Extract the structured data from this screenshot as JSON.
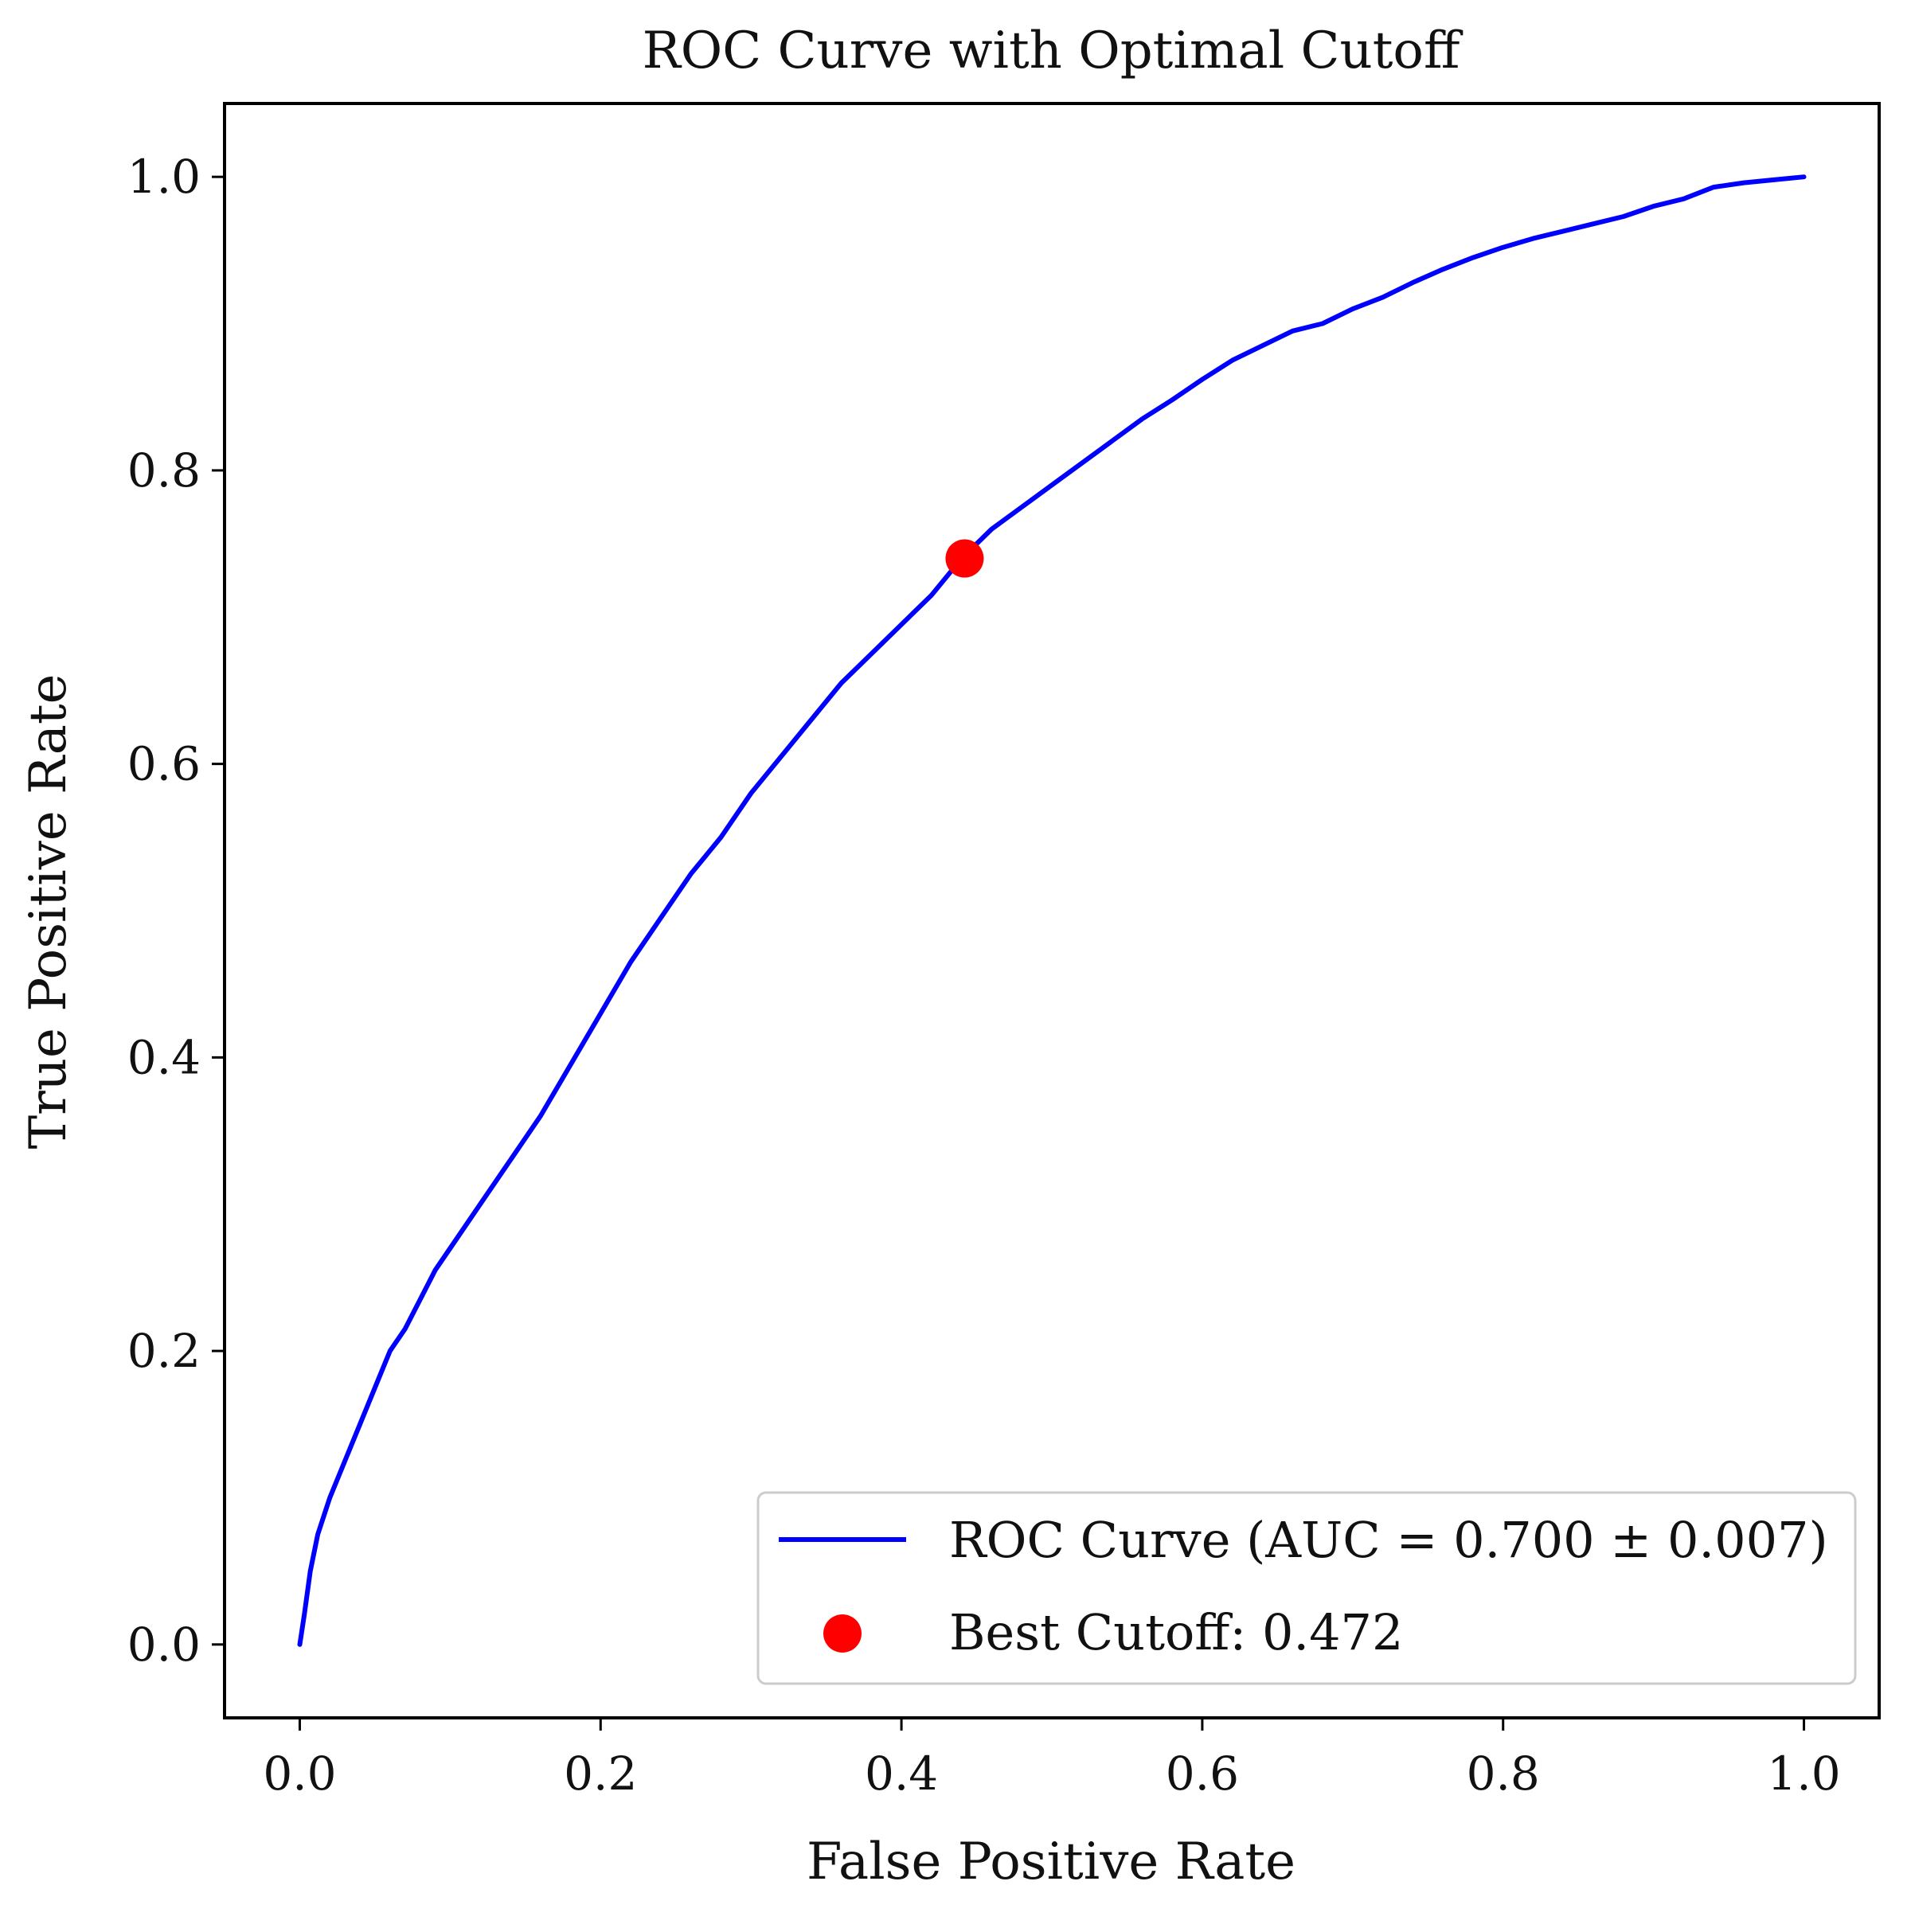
{
  "chart_data": {
    "type": "line",
    "title": "ROC Curve with Optimal Cutoff",
    "xlabel": "False Positive Rate",
    "ylabel": "True Positive Rate",
    "xlim": [
      -0.05,
      1.05
    ],
    "ylim": [
      -0.05,
      1.05
    ],
    "x_ticks": [
      "0.0",
      "0.2",
      "0.4",
      "0.6",
      "0.8",
      "1.0"
    ],
    "y_ticks": [
      "0.0",
      "0.2",
      "0.4",
      "0.6",
      "0.8",
      "1.0"
    ],
    "x_tick_values": [
      0.0,
      0.2,
      0.4,
      0.6,
      0.8,
      1.0
    ],
    "y_tick_values": [
      0.0,
      0.2,
      0.4,
      0.6,
      0.8,
      1.0
    ],
    "grid": false,
    "legend_position": "lower-right",
    "colors": {
      "curve": "#0000ff",
      "cutoff": "#ff0000",
      "frame": "#000000"
    },
    "series": [
      {
        "name": "ROC Curve (AUC = 0.700 ± 0.007)",
        "type": "line",
        "x": [
          0.0,
          0.003,
          0.007,
          0.012,
          0.02,
          0.03,
          0.04,
          0.05,
          0.06,
          0.07,
          0.08,
          0.09,
          0.1,
          0.12,
          0.14,
          0.16,
          0.18,
          0.2,
          0.22,
          0.24,
          0.26,
          0.28,
          0.3,
          0.32,
          0.34,
          0.36,
          0.38,
          0.4,
          0.42,
          0.44,
          0.46,
          0.48,
          0.5,
          0.52,
          0.54,
          0.56,
          0.58,
          0.6,
          0.62,
          0.64,
          0.66,
          0.68,
          0.7,
          0.72,
          0.74,
          0.76,
          0.78,
          0.8,
          0.82,
          0.84,
          0.86,
          0.88,
          0.9,
          0.92,
          0.94,
          0.96,
          0.98,
          1.0
        ],
        "y": [
          0.0,
          0.02,
          0.05,
          0.075,
          0.1,
          0.125,
          0.15,
          0.175,
          0.2,
          0.215,
          0.235,
          0.255,
          0.27,
          0.3,
          0.33,
          0.36,
          0.395,
          0.43,
          0.465,
          0.495,
          0.525,
          0.55,
          0.58,
          0.605,
          0.63,
          0.655,
          0.675,
          0.695,
          0.715,
          0.74,
          0.76,
          0.775,
          0.79,
          0.805,
          0.82,
          0.835,
          0.848,
          0.862,
          0.875,
          0.885,
          0.895,
          0.9,
          0.91,
          0.918,
          0.928,
          0.937,
          0.945,
          0.952,
          0.958,
          0.963,
          0.968,
          0.973,
          0.98,
          0.985,
          0.993,
          0.996,
          0.998,
          1.0
        ]
      },
      {
        "name": "Best Cutoff: 0.472",
        "type": "scatter",
        "x": [
          0.442
        ],
        "y": [
          0.74
        ]
      }
    ]
  }
}
